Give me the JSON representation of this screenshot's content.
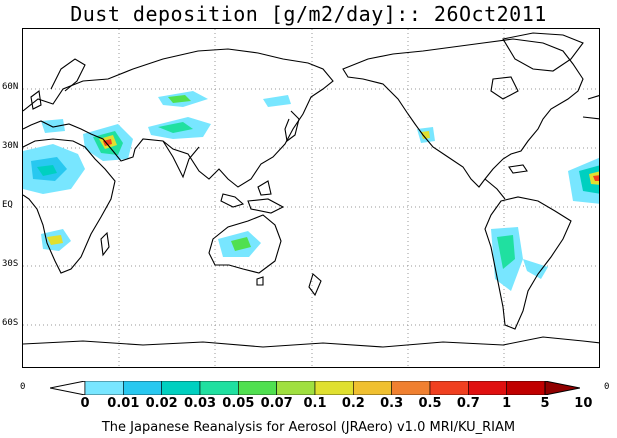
{
  "title": "Dust deposition [g/m2/day]:: 26Oct2011",
  "latitude_labels": [
    "60N",
    "30N",
    "EQ",
    "30S",
    "60S"
  ],
  "edge_labels": {
    "left": "0",
    "right": "0"
  },
  "colorbar": {
    "labels": [
      "0",
      "0.01",
      "0.02",
      "0.03",
      "0.05",
      "0.07",
      "0.1",
      "0.2",
      "0.3",
      "0.5",
      "0.7",
      "1",
      "5",
      "10"
    ],
    "colors": [
      "#ffffff",
      "#78e6ff",
      "#28c8f0",
      "#00d0c0",
      "#20e0a0",
      "#50e050",
      "#a0e040",
      "#e0e030",
      "#f0c030",
      "#f08030",
      "#f04020",
      "#e01010",
      "#c00000",
      "#900000"
    ]
  },
  "footer": "The Japanese Reanalysis for Aerosol (JRAero) v1.0 MRI/KU_RIAM"
}
